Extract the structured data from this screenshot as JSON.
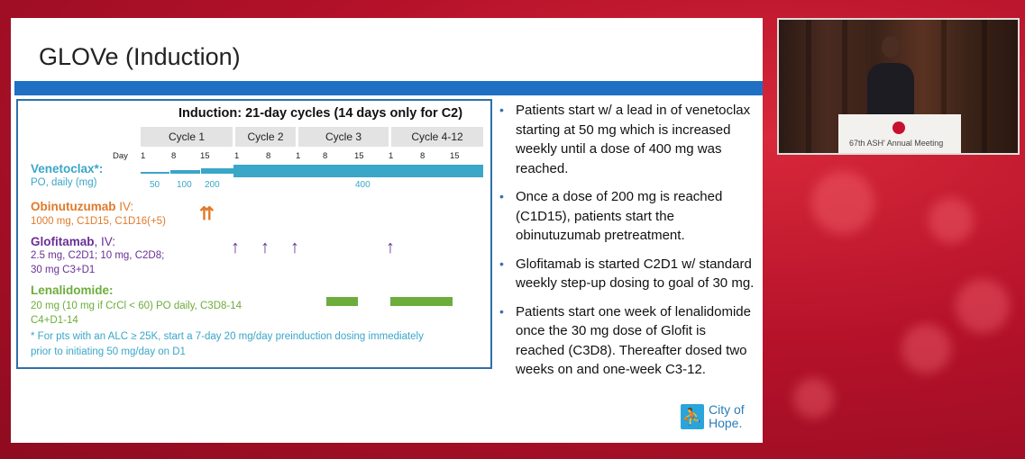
{
  "slide": {
    "title": "GLOVe (Induction)",
    "schema": {
      "header": "Induction: 21-day cycles (14 days only for C2)",
      "cycles": [
        "Cycle 1",
        "Cycle 2",
        "Cycle 3",
        "Cycle 4-12"
      ],
      "day_label": "Day",
      "days": [
        "1",
        "8",
        "15",
        "1",
        "8",
        "1",
        "8",
        "15",
        "1",
        "8",
        "15"
      ],
      "venetoclax": {
        "name": "Venetoclax*:",
        "note": "PO, daily (mg)",
        "doses": [
          "50",
          "100",
          "200",
          "400"
        ]
      },
      "obinutuzumab": {
        "name": "Obinutuzumab",
        "route": " IV:",
        "note": "1000 mg, C1D15, C1D16(+5)"
      },
      "glofitamab": {
        "name": "Glofitamab",
        "route": ", IV:",
        "note_1": "2.5 mg, C2D1; 10 mg, C2D8;",
        "note_2": "30 mg C3+D1"
      },
      "lenalidomide": {
        "name": "Lenalidomide:",
        "note_1": "20 mg (10 mg if CrCl < 60) PO daily, C3D8-14",
        "note_2": "C4+D1-14"
      },
      "footnote_1": "* For pts with an ALC ≥ 25K, start a 7-day 20 mg/day preinduction dosing immediately",
      "footnote_2": "prior to initiating  50 mg/day on D1"
    },
    "bullets": [
      "Patients start w/ a lead in of venetoclax starting at 50 mg which is increased weekly until a dose of 400 mg was reached.",
      "Once a dose of 200 mg is reached (C1D15), patients start the obinutuzumab pretreatment.",
      "Glofitamab is started C2D1 w/ standard weekly step-up dosing to goal of 30 mg.",
      "Patients start one week of lenalidomide once the 30 mg dose of Glofit is reached (C3D8). Thereafter dosed two weeks on and one-week C3-12."
    ],
    "logo": {
      "city": "City of",
      "hope": "Hope."
    }
  },
  "video": {
    "podium_text": "67th ASH' Annual Meeting"
  },
  "colors": {
    "title_bar": "#1f6fc4",
    "venetoclax": "#3aa6c8",
    "obinutuzumab": "#e07a2a",
    "glofitamab": "#6a2f96",
    "lenalidomide": "#6cad3b",
    "background": "#b5122a"
  }
}
